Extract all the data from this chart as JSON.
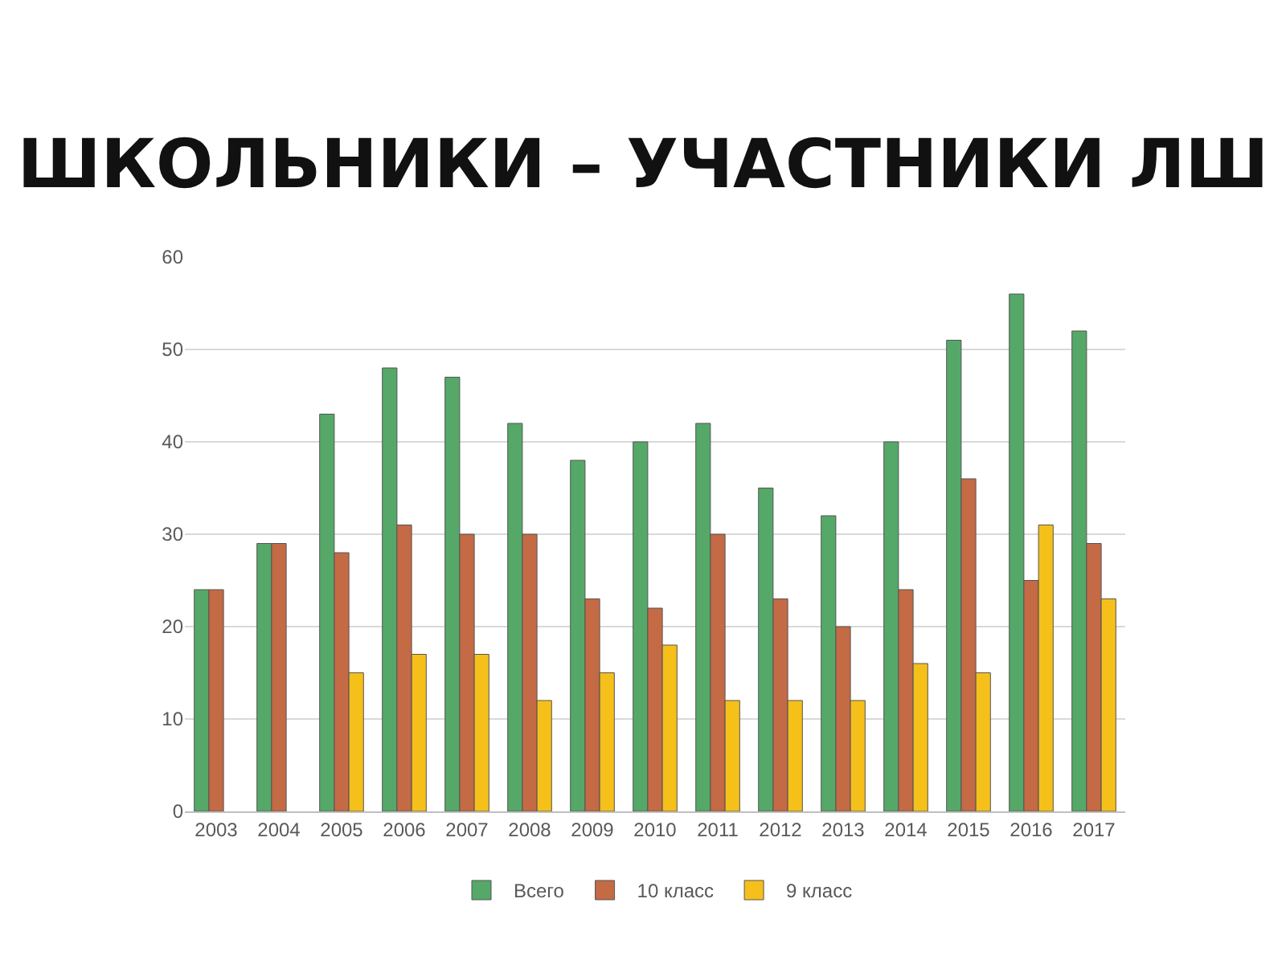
{
  "chart_data": {
    "type": "bar",
    "title": "ШКОЛЬНИКИ – УЧАСТНИКИ ЛШ",
    "categories": [
      "2003",
      "2004",
      "2005",
      "2006",
      "2007",
      "2008",
      "2009",
      "2010",
      "2011",
      "2012",
      "2013",
      "2014",
      "2015",
      "2016",
      "2017"
    ],
    "series": [
      {
        "name": "Всего",
        "color": "#55a868",
        "values": [
          24,
          29,
          43,
          48,
          47,
          42,
          38,
          40,
          42,
          35,
          32,
          40,
          51,
          56,
          52
        ]
      },
      {
        "name": "10 класс",
        "color": "#c46a45",
        "values": [
          24,
          29,
          28,
          31,
          30,
          30,
          23,
          22,
          30,
          23,
          20,
          24,
          36,
          25,
          29
        ]
      },
      {
        "name": "9 класс",
        "color": "#f5c01a",
        "values": [
          null,
          null,
          15,
          17,
          17,
          12,
          15,
          18,
          12,
          12,
          12,
          16,
          15,
          31,
          23
        ]
      }
    ],
    "ylim": [
      0,
      60
    ],
    "yticks": [
      0,
      10,
      20,
      30,
      40,
      50,
      60
    ],
    "grid": "y",
    "legend": "bottom"
  }
}
